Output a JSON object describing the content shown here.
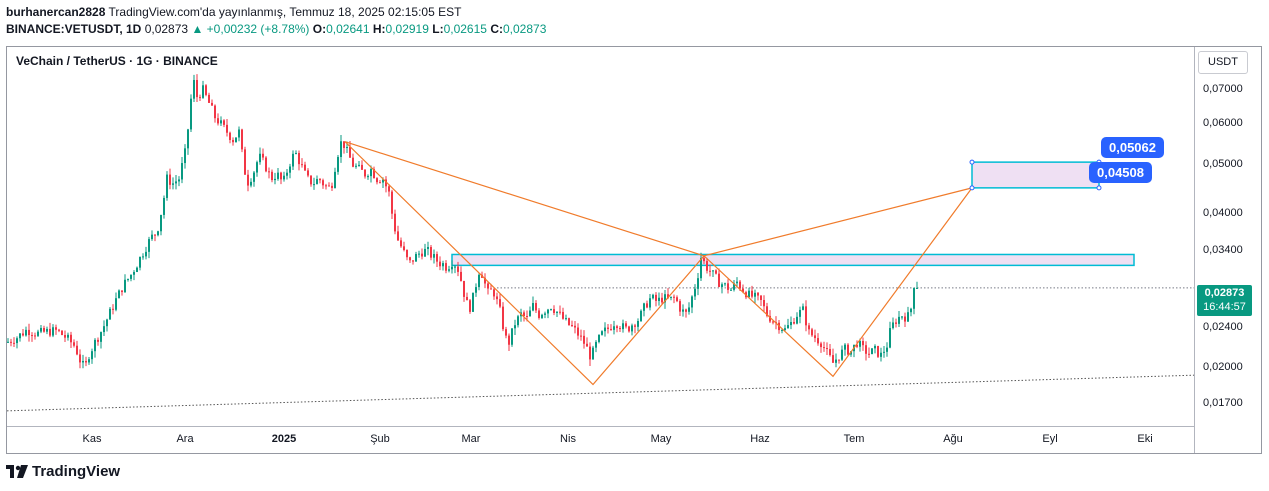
{
  "header": {
    "author": "burhanercan2828",
    "published_text": " TradingView.com'da yayınlanmış, Temmuz 18, 2025 02:15:05 EST",
    "symbol_line": "BINANCE:VETUSDT, 1D",
    "last": "0,02873",
    "change": "+0,00232 (+8.78%)",
    "o_label": "O:",
    "o": "0,02641",
    "h_label": "H:",
    "h": "0,02919",
    "l_label": "L:",
    "l": "0,02615",
    "c_label": "C:",
    "c": "0,02873"
  },
  "chart_title": "VeChain / TetherUS · 1G · BINANCE",
  "currency_button": "USDT",
  "price_axis": [
    "0,07000",
    "0,06000",
    "0,05000",
    "0,04000",
    "0,03400",
    "0,02400",
    "0,02000",
    "0,01700"
  ],
  "current_price": {
    "value": "0,02873",
    "countdown": "16:44:57"
  },
  "target_labels": {
    "upper": "0,05062",
    "lower": "0,04508"
  },
  "time_axis": [
    {
      "label": "Kas",
      "bold": false
    },
    {
      "label": "Ara",
      "bold": false
    },
    {
      "label": "2025",
      "bold": true
    },
    {
      "label": "Şub",
      "bold": false
    },
    {
      "label": "Mar",
      "bold": false
    },
    {
      "label": "Nis",
      "bold": false
    },
    {
      "label": "May",
      "bold": false
    },
    {
      "label": "Haz",
      "bold": false
    },
    {
      "label": "Tem",
      "bold": false
    },
    {
      "label": "Ağu",
      "bold": false
    },
    {
      "label": "Eyl",
      "bold": false
    },
    {
      "label": "Eki",
      "bold": false
    }
  ],
  "brand": "TradingView",
  "colors": {
    "up": "#089981",
    "down": "#f23645",
    "pattern": "#f07b2b",
    "zone_border": "#00bcd4",
    "zone_fill": "#e9d6ef",
    "label": "#2962ff"
  },
  "chart_data": {
    "type": "candlestick",
    "symbol": "VETUSDT",
    "interval": "1D",
    "scale": "log",
    "ylim": [
      0.0155,
      0.085
    ],
    "price_ticks": [
      0.07,
      0.06,
      0.05,
      0.04,
      0.034,
      0.024,
      0.02,
      0.017
    ],
    "close_path": [
      [
        0,
        0.0225
      ],
      [
        10,
        0.023
      ],
      [
        20,
        0.0238
      ],
      [
        30,
        0.0234
      ],
      [
        40,
        0.0236
      ],
      [
        50,
        0.0237
      ],
      [
        60,
        0.0229
      ],
      [
        68,
        0.0221
      ],
      [
        74,
        0.0205
      ],
      [
        78,
        0.02
      ],
      [
        82,
        0.0213
      ],
      [
        88,
        0.0225
      ],
      [
        96,
        0.024
      ],
      [
        105,
        0.0262
      ],
      [
        110,
        0.0275
      ],
      [
        116,
        0.029
      ],
      [
        124,
        0.0305
      ],
      [
        130,
        0.032
      ],
      [
        137,
        0.034
      ],
      [
        144,
        0.036
      ],
      [
        150,
        0.037
      ],
      [
        156,
        0.042
      ],
      [
        160,
        0.047
      ],
      [
        166,
        0.046
      ],
      [
        172,
        0.047
      ],
      [
        178,
        0.0527
      ],
      [
        182,
        0.061
      ],
      [
        186,
        0.074
      ],
      [
        190,
        0.068
      ],
      [
        196,
        0.07
      ],
      [
        202,
        0.066
      ],
      [
        208,
        0.062
      ],
      [
        214,
        0.06
      ],
      [
        220,
        0.058
      ],
      [
        226,
        0.056
      ],
      [
        232,
        0.058
      ],
      [
        236,
        0.051
      ],
      [
        240,
        0.046
      ],
      [
        246,
        0.048
      ],
      [
        252,
        0.052
      ],
      [
        258,
        0.05
      ],
      [
        264,
        0.047
      ],
      [
        270,
        0.048
      ],
      [
        276,
        0.046
      ],
      [
        282,
        0.05
      ],
      [
        288,
        0.053
      ],
      [
        294,
        0.05
      ],
      [
        300,
        0.047
      ],
      [
        306,
        0.046
      ],
      [
        312,
        0.047
      ],
      [
        318,
        0.0455
      ],
      [
        324,
        0.045
      ],
      [
        330,
        0.052
      ],
      [
        335,
        0.056
      ],
      [
        340,
        0.053
      ],
      [
        346,
        0.05
      ],
      [
        352,
        0.049
      ],
      [
        358,
        0.048
      ],
      [
        364,
        0.049
      ],
      [
        370,
        0.047
      ],
      [
        376,
        0.047
      ],
      [
        382,
        0.044
      ],
      [
        386,
        0.039
      ],
      [
        390,
        0.036
      ],
      [
        396,
        0.034
      ],
      [
        402,
        0.032
      ],
      [
        408,
        0.033
      ],
      [
        414,
        0.0338
      ],
      [
        420,
        0.034
      ],
      [
        426,
        0.033
      ],
      [
        432,
        0.0322
      ],
      [
        436,
        0.032
      ],
      [
        440,
        0.0315
      ],
      [
        446,
        0.0325
      ],
      [
        452,
        0.031
      ],
      [
        458,
        0.0275
      ],
      [
        462,
        0.026
      ],
      [
        466,
        0.0275
      ],
      [
        472,
        0.031
      ],
      [
        476,
        0.0305
      ],
      [
        480,
        0.028
      ],
      [
        486,
        0.0285
      ],
      [
        490,
        0.027
      ],
      [
        494,
        0.0255
      ],
      [
        498,
        0.023
      ],
      [
        502,
        0.0225
      ],
      [
        508,
        0.0245
      ],
      [
        514,
        0.0255
      ],
      [
        520,
        0.025
      ],
      [
        526,
        0.0265
      ],
      [
        532,
        0.0255
      ],
      [
        538,
        0.026
      ],
      [
        544,
        0.0265
      ],
      [
        550,
        0.0258
      ],
      [
        556,
        0.025
      ],
      [
        560,
        0.0245
      ],
      [
        566,
        0.024
      ],
      [
        572,
        0.0232
      ],
      [
        578,
        0.0223
      ],
      [
        584,
        0.021
      ],
      [
        590,
        0.0225
      ],
      [
        596,
        0.0235
      ],
      [
        602,
        0.024
      ],
      [
        608,
        0.0247
      ],
      [
        614,
        0.0242
      ],
      [
        620,
        0.0238
      ],
      [
        626,
        0.0245
      ],
      [
        632,
        0.025
      ],
      [
        638,
        0.0265
      ],
      [
        644,
        0.0275
      ],
      [
        650,
        0.027
      ],
      [
        656,
        0.0275
      ],
      [
        662,
        0.0272
      ],
      [
        668,
        0.0275
      ],
      [
        674,
        0.026
      ],
      [
        680,
        0.0255
      ],
      [
        686,
        0.028
      ],
      [
        690,
        0.0298
      ],
      [
        694,
        0.033
      ],
      [
        700,
        0.0315
      ],
      [
        706,
        0.0305
      ],
      [
        712,
        0.0295
      ],
      [
        718,
        0.029
      ],
      [
        724,
        0.0285
      ],
      [
        730,
        0.0295
      ],
      [
        736,
        0.0285
      ],
      [
        742,
        0.0278
      ],
      [
        748,
        0.0275
      ],
      [
        754,
        0.027
      ],
      [
        760,
        0.0255
      ],
      [
        766,
        0.0248
      ],
      [
        772,
        0.0243
      ],
      [
        778,
        0.0238
      ],
      [
        784,
        0.0245
      ],
      [
        790,
        0.0255
      ],
      [
        796,
        0.026
      ],
      [
        802,
        0.0235
      ],
      [
        808,
        0.023
      ],
      [
        814,
        0.0225
      ],
      [
        820,
        0.0214
      ],
      [
        826,
        0.0205
      ],
      [
        832,
        0.0212
      ],
      [
        838,
        0.0218
      ],
      [
        844,
        0.0216
      ],
      [
        850,
        0.0225
      ],
      [
        856,
        0.0218
      ],
      [
        862,
        0.0214
      ],
      [
        868,
        0.0217
      ],
      [
        874,
        0.0212
      ],
      [
        880,
        0.0222
      ],
      [
        884,
        0.024
      ],
      [
        890,
        0.025
      ],
      [
        896,
        0.0255
      ],
      [
        900,
        0.025
      ],
      [
        904,
        0.0262
      ],
      [
        908,
        0.027
      ],
      [
        910,
        0.02873
      ]
    ],
    "pattern_points": [
      [
        338,
        0.0555
      ],
      [
        586,
        0.0186
      ],
      [
        697,
        0.0332
      ],
      [
        826,
        0.0193
      ],
      [
        965,
        0.04508
      ]
    ],
    "apex_lines": [
      [
        [
          338,
          0.0555
        ],
        [
          697,
          0.0332
        ]
      ],
      [
        [
          697,
          0.0332
        ],
        [
          965,
          0.04508
        ]
      ]
    ],
    "zones": [
      {
        "x": [
          445,
          1127
        ],
        "low": 0.0318,
        "high": 0.0334
      },
      {
        "x": [
          965,
          1092
        ],
        "low": 0.04508,
        "high": 0.05062
      }
    ],
    "support_trendline": [
      [
        0,
        0.01652
      ],
      [
        1188,
        0.0194
      ]
    ],
    "current_price_line": 0.02873
  }
}
